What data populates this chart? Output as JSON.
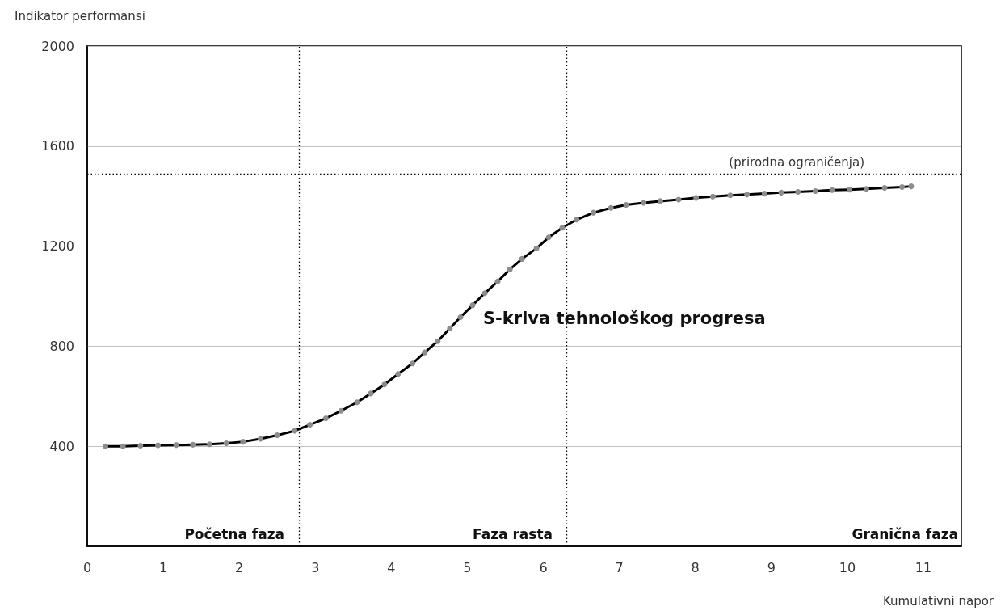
{
  "chart_data": {
    "type": "line",
    "xlabel": "Kumulativni napor",
    "ylabel": "Indikator performansi",
    "annotations": [
      "S-kriva tehnološkog progresa",
      "Početna faza",
      "Faza rasta",
      "Granična faza"
    ],
    "xlim": [
      0,
      11.5
    ],
    "xticks": [
      0,
      1,
      2,
      3,
      4,
      5,
      6,
      7,
      8,
      9,
      10,
      11
    ],
    "ylim": [
      0,
      2000
    ],
    "yticks": [
      400,
      800,
      1200,
      1600,
      2000
    ],
    "grid": "y",
    "marker": "circle",
    "line_style": "solid",
    "ref_lines": [
      {
        "axis": "x",
        "value": 2.79,
        "label": null,
        "line_style": "dotted",
        "color": "#000000"
      },
      {
        "axis": "x",
        "value": 6.31,
        "label": null,
        "line_style": "dotted",
        "color": "#000000"
      },
      {
        "axis": "y",
        "value": 1490,
        "label": "(prirodna ograničenja)",
        "line_style": "dotted",
        "color": "#000000"
      }
    ],
    "series": [
      {
        "color": "#000000",
        "x": [
          0.24,
          0.47,
          0.7,
          0.93,
          1.17,
          1.39,
          1.61,
          1.83,
          2.05,
          2.28,
          2.5,
          2.73,
          2.93,
          3.14,
          3.34,
          3.55,
          3.73,
          3.91,
          4.09,
          4.28,
          4.44,
          4.61,
          4.77,
          4.91,
          5.07,
          5.23,
          5.4,
          5.56,
          5.72,
          5.91,
          6.07,
          6.25,
          6.44,
          6.66,
          6.89,
          7.09,
          7.32,
          7.54,
          7.78,
          8.01,
          8.23,
          8.46,
          8.68,
          8.91,
          9.13,
          9.35,
          9.58,
          9.8,
          10.03,
          10.25,
          10.49,
          10.72,
          10.84
        ],
        "values": [
          400,
          400,
          402,
          404,
          405,
          406,
          408,
          412,
          418,
          430,
          444,
          462,
          486,
          512,
          542,
          576,
          611,
          647,
          689,
          731,
          775,
          820,
          871,
          916,
          964,
          1012,
          1059,
          1107,
          1149,
          1191,
          1235,
          1274,
          1306,
          1334,
          1353,
          1365,
          1373,
          1380,
          1386,
          1393,
          1398,
          1403,
          1406,
          1410,
          1414,
          1417,
          1420,
          1424,
          1426,
          1429,
          1433,
          1436,
          1439
        ]
      }
    ]
  }
}
